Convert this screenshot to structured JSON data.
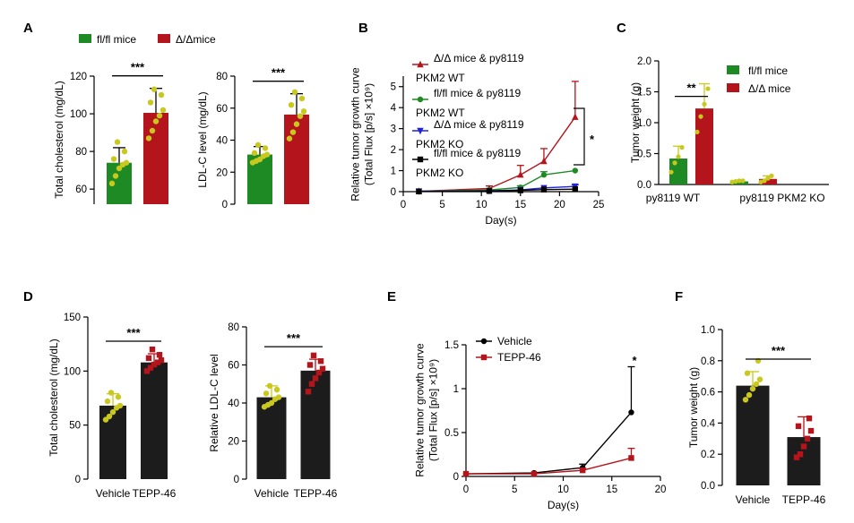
{
  "colors": {
    "green": "#1e8a23",
    "red": "#b4141b",
    "dark": "#1c1c1c",
    "blue": "#1f22d6",
    "dot_yellow": "#c8c81e",
    "dot_red": "#b4141b",
    "black": "#000000"
  },
  "chart_data": [
    {
      "id": "A1",
      "panel_label": "A",
      "type": "bar",
      "ylabel": "Total cholesterol (mg/dL)",
      "ylim": [
        52,
        120
      ],
      "yticks": [
        60,
        80,
        100,
        120
      ],
      "legend": [
        "fl/fl mice",
        "Δ/Δmice"
      ],
      "series": [
        {
          "name": "fl/fl mice",
          "color": "green",
          "value": 74,
          "err": 8,
          "points": [
            63,
            67,
            71,
            73,
            74,
            76,
            80,
            85
          ]
        },
        {
          "name": "Δ/Δmice",
          "color": "red",
          "value": 100.5,
          "err": 13,
          "points": [
            87,
            91,
            96,
            99,
            102,
            106,
            110,
            113
          ]
        }
      ],
      "significance": "***"
    },
    {
      "id": "A2",
      "type": "bar",
      "ylabel": "LDL-C level (mg/dL)",
      "ylim": [
        0,
        80
      ],
      "yticks": [
        0,
        20,
        40,
        60,
        80
      ],
      "series": [
        {
          "name": "fl/fl mice",
          "color": "green",
          "value": 31,
          "err": 5,
          "points": [
            26,
            27,
            28,
            30,
            31,
            32,
            35,
            37
          ]
        },
        {
          "name": "Δ/Δmice",
          "color": "red",
          "value": 56,
          "err": 13,
          "points": [
            41,
            45,
            50,
            55,
            58,
            62,
            66,
            70
          ]
        }
      ],
      "significance": "***"
    },
    {
      "id": "B",
      "panel_label": "B",
      "type": "line",
      "ylabel": [
        "Relative tumor growth curve",
        "(Total Flux [p/s] ×10⁹)"
      ],
      "xlabel": "Day(s)",
      "xlim": [
        0,
        25
      ],
      "xticks": [
        0,
        5,
        10,
        15,
        20,
        25
      ],
      "ylim": [
        0,
        5.5
      ],
      "yticks": [
        0,
        1,
        2,
        3,
        4,
        5
      ],
      "series": [
        {
          "name": [
            "Δ/Δ mice & py8119",
            "PKM2 WT"
          ],
          "color": "red",
          "marker": "triangle",
          "x": [
            2,
            11,
            15,
            18,
            22
          ],
          "y": [
            0.02,
            0.15,
            0.8,
            1.45,
            3.55
          ],
          "err": [
            0.02,
            0.12,
            0.45,
            0.6,
            1.7
          ]
        },
        {
          "name": [
            "fl/fl mice & py8119",
            "PKM2 WT"
          ],
          "color": "green",
          "marker": "circle",
          "x": [
            2,
            11,
            15,
            18,
            22
          ],
          "y": [
            0.02,
            0.08,
            0.2,
            0.8,
            1.0
          ],
          "err": [
            0.01,
            0.03,
            0.08,
            0.15,
            0.05
          ]
        },
        {
          "name": [
            "Δ/Δ mice & py8119",
            "PKM2 KO"
          ],
          "color": "blue",
          "marker": "triangle-down",
          "x": [
            2,
            11,
            15,
            18,
            22
          ],
          "y": [
            0.02,
            0.04,
            0.08,
            0.18,
            0.25
          ],
          "err": [
            0.01,
            0.02,
            0.04,
            0.06,
            0.08
          ]
        },
        {
          "name": [
            "fl/fl mice & py8119",
            "PKM2 KO"
          ],
          "color": "black",
          "marker": "square",
          "x": [
            2,
            11,
            15,
            18,
            22
          ],
          "y": [
            0.01,
            0.03,
            0.06,
            0.1,
            0.12
          ],
          "err": [
            0.01,
            0.01,
            0.02,
            0.04,
            0.05
          ]
        }
      ],
      "significance": "*"
    },
    {
      "id": "C",
      "panel_label": "C",
      "type": "bar",
      "ylabel": "Tumor weight (g)",
      "ylim": [
        0,
        2.0
      ],
      "yticks": [
        0.0,
        0.5,
        1.0,
        1.5,
        2.0
      ],
      "groups": [
        "py8119 WT",
        "py8119 PKM2 KO"
      ],
      "legend": [
        "fl/fl mice",
        "Δ/Δ mice"
      ],
      "series": [
        {
          "name": "fl/fl mice",
          "color": "green",
          "values": [
            0.42,
            0.05
          ],
          "err": [
            0.2,
            0.02
          ],
          "points": [
            [
              0.2,
              0.35,
              0.45,
              0.6
            ],
            [
              0.04,
              0.05,
              0.06,
              0.06
            ]
          ]
        },
        {
          "name": "Δ/Δ mice",
          "color": "red",
          "values": [
            1.23,
            0.09
          ],
          "err": [
            0.4,
            0.05
          ],
          "points": [
            [
              0.85,
              1.1,
              1.3,
              1.55
            ],
            [
              0.04,
              0.06,
              0.1,
              0.14
            ]
          ]
        }
      ],
      "significance": "**"
    },
    {
      "id": "D1",
      "panel_label": "D",
      "type": "bar",
      "ylabel": "Total cholesterol (mg/dL)",
      "ylim": [
        0,
        150
      ],
      "yticks": [
        0,
        50,
        100,
        150
      ],
      "categories": [
        "Vehicle",
        "TEPP-46"
      ],
      "series": [
        {
          "name": "Vehicle",
          "color": "dark",
          "dot": "dot_yellow",
          "value": 68,
          "err": 11,
          "points": [
            55,
            58,
            62,
            66,
            68,
            72,
            76,
            80
          ]
        },
        {
          "name": "TEPP-46",
          "color": "dark",
          "dot": "dot_red",
          "value": 108,
          "err": 8,
          "points": [
            100,
            103,
            106,
            108,
            110,
            112,
            115,
            120
          ]
        }
      ],
      "significance": "***"
    },
    {
      "id": "D2",
      "type": "bar",
      "ylabel": "Relative LDL-C level",
      "ylim": [
        0,
        80
      ],
      "yticks": [
        0,
        20,
        40,
        60,
        80
      ],
      "categories": [
        "Vehicle",
        "TEPP-46"
      ],
      "series": [
        {
          "name": "Vehicle",
          "color": "dark",
          "dot": "dot_yellow",
          "value": 43,
          "err": 6,
          "points": [
            38,
            39,
            40,
            42,
            43,
            45,
            47,
            49
          ]
        },
        {
          "name": "TEPP-46",
          "color": "dark",
          "dot": "dot_red",
          "value": 57,
          "err": 6,
          "points": [
            46,
            50,
            53,
            56,
            58,
            60,
            62,
            65
          ]
        }
      ],
      "significance": "***"
    },
    {
      "id": "E",
      "panel_label": "E",
      "type": "line",
      "ylabel": [
        "Relative tumor growth curve",
        "(Total Flux [p/s] ×10⁹)"
      ],
      "xlabel": "Day(s)",
      "xlim": [
        0,
        20
      ],
      "xticks": [
        0,
        5,
        10,
        15,
        20
      ],
      "ylim": [
        0,
        1.5
      ],
      "yticks": [
        0,
        0.5,
        1,
        1.5
      ],
      "ytick_labels": [
        "0",
        "0.5",
        "1",
        "1.5"
      ],
      "series": [
        {
          "name": "Vehicle",
          "color": "black",
          "marker": "circle",
          "x": [
            0,
            7,
            12,
            17
          ],
          "y": [
            0.03,
            0.04,
            0.1,
            0.73
          ],
          "err": [
            0.01,
            0.01,
            0.04,
            0.52
          ]
        },
        {
          "name": "TEPP-46",
          "color": "red",
          "marker": "square",
          "x": [
            0,
            7,
            12,
            17
          ],
          "y": [
            0.03,
            0.03,
            0.07,
            0.21
          ],
          "err": [
            0.01,
            0.01,
            0.02,
            0.11
          ]
        }
      ],
      "significance": "*"
    },
    {
      "id": "F",
      "panel_label": "F",
      "type": "bar",
      "ylabel": "Tumor weight (g)",
      "ylim": [
        0,
        1.0
      ],
      "yticks": [
        0.0,
        0.2,
        0.4,
        0.6,
        0.8,
        1.0
      ],
      "categories": [
        "Vehicle",
        "TEPP-46"
      ],
      "series": [
        {
          "name": "Vehicle",
          "color": "dark",
          "dot": "dot_yellow",
          "value": 0.64,
          "err": 0.09,
          "points": [
            0.55,
            0.58,
            0.62,
            0.65,
            0.68,
            0.72,
            0.8
          ]
        },
        {
          "name": "TEPP-46",
          "color": "dark",
          "dot": "dot_red",
          "value": 0.31,
          "err": 0.13,
          "points": [
            0.18,
            0.2,
            0.25,
            0.3,
            0.35,
            0.38,
            0.43
          ]
        }
      ],
      "significance": "***"
    }
  ]
}
